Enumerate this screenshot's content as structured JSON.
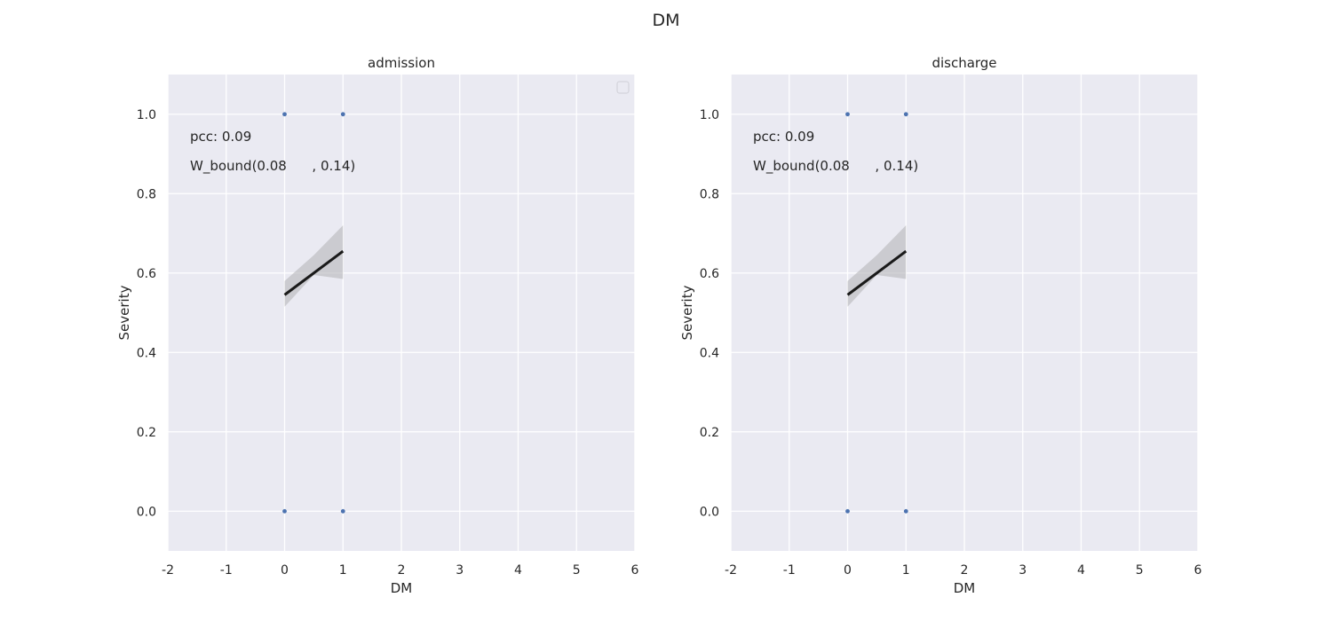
{
  "figure": {
    "suptitle": "DM",
    "colors": {
      "panel_bg": "#eaeaf2",
      "grid": "#ffffff",
      "points": "#4c72b0",
      "fit_line": "#1a1a1a",
      "ci_band": "#b8b8bc"
    }
  },
  "chart_data": [
    {
      "type": "scatter",
      "title": "admission",
      "xlabel": "DM",
      "ylabel": "Severity",
      "xlim": [
        -2,
        6
      ],
      "ylim": [
        -0.1,
        1.1
      ],
      "xticks": [
        -2,
        -1,
        0,
        1,
        2,
        3,
        4,
        5,
        6
      ],
      "yticks": [
        0.0,
        0.2,
        0.4,
        0.6,
        0.8,
        1.0
      ],
      "grid": true,
      "legend": "top-right (empty)",
      "points": [
        {
          "x": 0,
          "y": 1.0
        },
        {
          "x": 1,
          "y": 1.0
        },
        {
          "x": 0,
          "y": 0.0
        },
        {
          "x": 1,
          "y": 0.0
        }
      ],
      "fit_line": {
        "x": [
          0,
          1
        ],
        "y": [
          0.545,
          0.655
        ]
      },
      "ci_band": {
        "x": [
          0,
          0.5,
          1
        ],
        "lower": [
          0.515,
          0.595,
          0.585
        ],
        "upper": [
          0.58,
          0.645,
          0.72
        ]
      },
      "annotations": [
        "pcc: 0.09",
        "W_bound(0.08      , 0.14)"
      ]
    },
    {
      "type": "scatter",
      "title": "discharge",
      "xlabel": "DM",
      "ylabel": "Severity",
      "xlim": [
        -2,
        6
      ],
      "ylim": [
        -0.1,
        1.1
      ],
      "xticks": [
        -2,
        -1,
        0,
        1,
        2,
        3,
        4,
        5,
        6
      ],
      "yticks": [
        0.0,
        0.2,
        0.4,
        0.6,
        0.8,
        1.0
      ],
      "grid": true,
      "legend": "none",
      "points": [
        {
          "x": 0,
          "y": 1.0
        },
        {
          "x": 1,
          "y": 1.0
        },
        {
          "x": 0,
          "y": 0.0
        },
        {
          "x": 1,
          "y": 0.0
        }
      ],
      "fit_line": {
        "x": [
          0,
          1
        ],
        "y": [
          0.545,
          0.655
        ]
      },
      "ci_band": {
        "x": [
          0,
          0.5,
          1
        ],
        "lower": [
          0.515,
          0.595,
          0.585
        ],
        "upper": [
          0.58,
          0.645,
          0.72
        ]
      },
      "annotations": [
        "pcc: 0.09",
        "W_bound(0.08      , 0.14)"
      ]
    }
  ]
}
